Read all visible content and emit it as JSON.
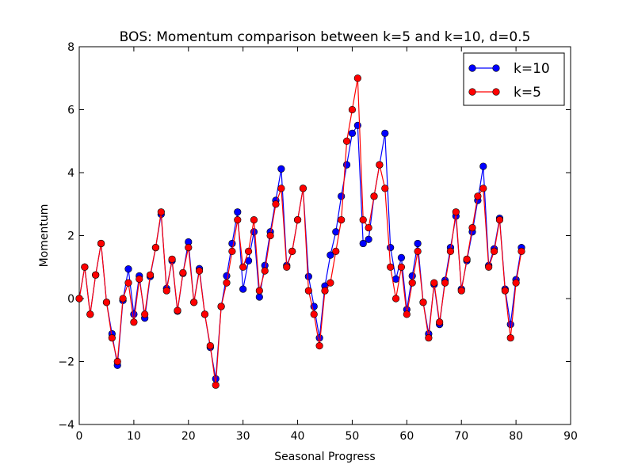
{
  "chart_data": {
    "type": "line",
    "title": "BOS: Momentum comparison between k=5 and k=10, d=0.5",
    "xlabel": "Seasonal Progress",
    "ylabel": "Momentum",
    "xlim": [
      0,
      90
    ],
    "ylim": [
      -4,
      8
    ],
    "xticks": [
      0,
      10,
      20,
      30,
      40,
      50,
      60,
      70,
      80,
      90
    ],
    "yticks": [
      -4,
      -2,
      0,
      2,
      4,
      6,
      8
    ],
    "grid": false,
    "legend_position": "top-right",
    "x": [
      0,
      1,
      2,
      3,
      4,
      5,
      6,
      7,
      8,
      9,
      10,
      11,
      12,
      13,
      14,
      15,
      16,
      17,
      18,
      19,
      20,
      21,
      22,
      23,
      24,
      25,
      26,
      27,
      28,
      29,
      30,
      31,
      32,
      33,
      34,
      35,
      36,
      37,
      38,
      39,
      40,
      41,
      42,
      43,
      44,
      45,
      46,
      47,
      48,
      49,
      50,
      51,
      52,
      53,
      54,
      55,
      56,
      57,
      58,
      59,
      60,
      61,
      62,
      63,
      64,
      65,
      66,
      67,
      68,
      69,
      70,
      71,
      72,
      73,
      74,
      75,
      76,
      77,
      78,
      79,
      80,
      81
    ],
    "series": [
      {
        "name": "k=10",
        "color": "#0000ff",
        "values": [
          0,
          1.0,
          -0.5,
          0.75,
          1.75,
          -0.12,
          -1.12,
          -2.12,
          -0.06,
          0.94,
          -0.5,
          0.72,
          -0.62,
          0.7,
          1.62,
          2.68,
          0.32,
          1.2,
          -0.4,
          0.8,
          1.8,
          -0.12,
          0.95,
          -0.5,
          -1.55,
          -2.55,
          -0.25,
          0.72,
          1.75,
          2.75,
          0.3,
          1.2,
          2.12,
          0.05,
          1.05,
          2.12,
          3.12,
          4.12,
          1.05,
          1.5,
          2.5,
          3.5,
          0.7,
          -0.25,
          -1.25,
          0.4,
          1.38,
          2.12,
          3.25,
          4.25,
          5.25,
          5.5,
          1.75,
          1.88,
          3.25,
          4.25,
          5.25,
          1.62,
          0.62,
          1.3,
          -0.35,
          0.72,
          1.75,
          -0.12,
          -1.12,
          0.45,
          -0.82,
          0.58,
          1.62,
          2.62,
          0.3,
          1.2,
          2.12,
          3.12,
          4.2,
          1.05,
          1.58,
          2.55,
          0.3,
          -0.82,
          0.6,
          1.62
        ]
      },
      {
        "name": "k=5",
        "color": "#ff0000",
        "values": [
          0,
          1.0,
          -0.5,
          0.75,
          1.75,
          -0.12,
          -1.25,
          -2.0,
          0.0,
          0.5,
          -0.75,
          0.62,
          -0.5,
          0.75,
          1.62,
          2.75,
          0.25,
          1.25,
          -0.38,
          0.82,
          1.62,
          -0.12,
          0.88,
          -0.5,
          -1.5,
          -2.75,
          -0.25,
          0.5,
          1.5,
          2.5,
          1.0,
          1.5,
          2.5,
          0.25,
          0.88,
          2.0,
          3.0,
          3.5,
          1.0,
          1.5,
          2.5,
          3.5,
          0.25,
          -0.5,
          -1.5,
          0.25,
          0.5,
          1.5,
          2.5,
          5.0,
          6.0,
          7.0,
          2.5,
          2.25,
          3.25,
          4.25,
          3.5,
          1.0,
          0.0,
          1.0,
          -0.5,
          0.5,
          1.5,
          -0.12,
          -1.25,
          0.5,
          -0.75,
          0.5,
          1.5,
          2.75,
          0.25,
          1.25,
          2.25,
          3.25,
          3.5,
          1.0,
          1.5,
          2.5,
          0.25,
          -1.25,
          0.5,
          1.5
        ]
      }
    ]
  }
}
